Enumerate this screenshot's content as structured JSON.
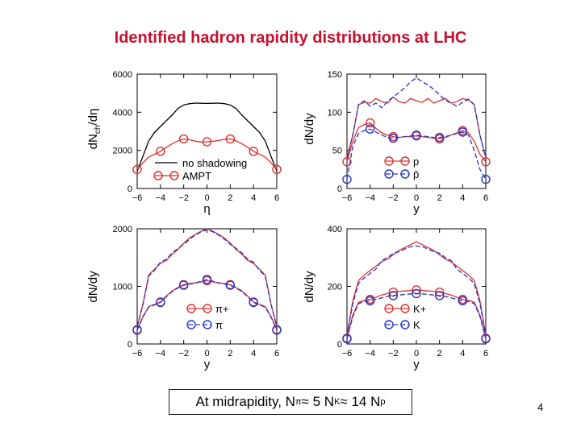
{
  "title": "Identified hadron rapidity distributions  at LHC",
  "caption": {
    "prefix": "At midrapidity, N",
    "pi_sub": "π",
    "approx1": " ≈ 5 N",
    "k_sub": "K",
    "approx2": " ≈ 14 N",
    "p_sub": "p"
  },
  "page_number": "4",
  "colors": {
    "red": "#e0312f",
    "blue": "#2436c8",
    "black": "#000000"
  },
  "chart_data": [
    {
      "type": "line",
      "panel": "top-left",
      "xlabel": "η",
      "ylabel": "dNch/dη",
      "ylabel_main": "dN",
      "ylabel_sub": "ch",
      "ylabel_tail": "/dη",
      "xlim": [
        -6,
        6
      ],
      "ylim": [
        0,
        6000
      ],
      "xticks": [
        -6,
        -4,
        -2,
        0,
        2,
        4,
        6
      ],
      "yticks": [
        0,
        2000,
        4000,
        6000
      ],
      "series": [
        {
          "name": "no shadowing",
          "color": "#000000",
          "dash": "solid",
          "markers": false,
          "x": [
            -6,
            -5.5,
            -5,
            -4.5,
            -4,
            -3.5,
            -3,
            -2.5,
            -2,
            -1.5,
            -1,
            -0.5,
            0,
            0.5,
            1,
            1.5,
            2,
            2.5,
            3,
            3.5,
            4,
            4.5,
            5,
            5.5,
            6
          ],
          "y": [
            900,
            1700,
            2500,
            2950,
            3250,
            3550,
            3850,
            4200,
            4380,
            4450,
            4480,
            4470,
            4460,
            4470,
            4480,
            4450,
            4380,
            4200,
            3850,
            3550,
            3250,
            2950,
            2500,
            1700,
            900
          ]
        },
        {
          "name": "AMPT",
          "color": "#e0312f",
          "dash": "solid",
          "markers": true,
          "x": [
            -6,
            -5.5,
            -5,
            -4.5,
            -4,
            -3.5,
            -3,
            -2.5,
            -2,
            -1.5,
            -1,
            -0.5,
            0,
            0.5,
            1,
            1.5,
            2,
            2.5,
            3,
            3.5,
            4,
            4.5,
            5,
            5.5,
            6
          ],
          "y": [
            1000,
            1350,
            1650,
            1800,
            1950,
            2150,
            2350,
            2500,
            2600,
            2560,
            2480,
            2440,
            2450,
            2480,
            2520,
            2580,
            2600,
            2500,
            2350,
            2150,
            1950,
            1800,
            1650,
            1350,
            1000
          ],
          "marker_x": [
            -6,
            -4,
            -2,
            0,
            2,
            4,
            6
          ],
          "marker_y": [
            1000,
            1950,
            2600,
            2450,
            2600,
            1950,
            1000
          ]
        }
      ],
      "legend": [
        "no shadowing",
        "AMPT"
      ]
    },
    {
      "type": "line",
      "panel": "top-right",
      "xlabel": "y",
      "ylabel": "dN/dy",
      "xlim": [
        -6,
        6
      ],
      "ylim": [
        0,
        150
      ],
      "xticks": [
        -6,
        -4,
        -2,
        0,
        2,
        4,
        6
      ],
      "yticks": [
        0,
        50,
        100,
        150
      ],
      "series": [
        {
          "name": "p (upper)",
          "color": "#e0312f",
          "dash": "solid",
          "markers": false,
          "x": [
            -6,
            -5.5,
            -5,
            -4.5,
            -4,
            -3.5,
            -3,
            -2.5,
            -2,
            -1.5,
            -1,
            -0.5,
            0,
            0.5,
            1,
            1.5,
            2,
            2.5,
            3,
            3.5,
            4,
            4.5,
            5,
            5.5,
            6
          ],
          "y": [
            40,
            70,
            110,
            113,
            112,
            118,
            114,
            112,
            120,
            114,
            112,
            118,
            115,
            113,
            118,
            112,
            115,
            118,
            112,
            114,
            118,
            116,
            110,
            70,
            40
          ]
        },
        {
          "name": "pbar (upper)",
          "color": "#2436c8",
          "dash": "dashed",
          "markers": false,
          "x": [
            -6,
            -5.5,
            -5,
            -4.5,
            -4,
            -3.5,
            -3,
            -2.5,
            -2,
            -1.5,
            -1,
            -0.5,
            0,
            0.5,
            1,
            1.5,
            2,
            2.5,
            3,
            3.5,
            4,
            4.5,
            5,
            5.5,
            6
          ],
          "y": [
            40,
            70,
            110,
            115,
            108,
            112,
            106,
            114,
            120,
            126,
            132,
            140,
            145,
            140,
            136,
            130,
            123,
            116,
            112,
            108,
            113,
            117,
            110,
            70,
            40
          ]
        },
        {
          "name": "p",
          "color": "#e0312f",
          "dash": "solid",
          "markers": true,
          "x": [
            -6,
            -5.5,
            -5,
            -4.5,
            -4,
            -3.5,
            -3,
            -2.5,
            -2,
            -1.5,
            -1,
            -0.5,
            0,
            0.5,
            1,
            1.5,
            2,
            2.5,
            3,
            3.5,
            4,
            4.5,
            5,
            5.5,
            6
          ],
          "y": [
            35,
            62,
            80,
            84,
            86,
            79,
            73,
            70,
            68,
            67,
            68,
            68,
            69,
            68,
            67,
            66,
            65,
            67,
            70,
            73,
            76,
            73,
            62,
            45,
            35
          ],
          "marker_x": [
            -6,
            -4,
            -2,
            0,
            2,
            4,
            6
          ],
          "marker_y": [
            35,
            86,
            68,
            69,
            65,
            76,
            35
          ]
        },
        {
          "name": "p̄",
          "color": "#2436c8",
          "dash": "dashed",
          "markers": true,
          "x": [
            -6,
            -5.5,
            -5,
            -4.5,
            -4,
            -3.5,
            -3,
            -2.5,
            -2,
            -1.5,
            -1,
            -0.5,
            0,
            0.5,
            1,
            1.5,
            2,
            2.5,
            3,
            3.5,
            4,
            4.5,
            5,
            5.5,
            6
          ],
          "y": [
            12,
            55,
            72,
            76,
            78,
            74,
            70,
            67,
            66,
            67,
            68,
            69,
            70,
            69,
            68,
            67,
            67,
            68,
            70,
            72,
            74,
            70,
            50,
            25,
            12
          ],
          "marker_x": [
            -6,
            -4,
            -2,
            0,
            2,
            4,
            6
          ],
          "marker_y": [
            12,
            78,
            66,
            70,
            67,
            74,
            12
          ]
        }
      ],
      "legend": [
        "p",
        "p̄"
      ]
    },
    {
      "type": "line",
      "panel": "bottom-left",
      "xlabel": "y",
      "ylabel": "dN/dy",
      "xlim": [
        -6,
        6
      ],
      "ylim": [
        0,
        2000
      ],
      "xticks": [
        -6,
        -4,
        -2,
        0,
        2,
        4,
        6
      ],
      "yticks": [
        0,
        1000,
        2000
      ],
      "series": [
        {
          "name": "π+ (upper)",
          "color": "#e0312f",
          "dash": "solid",
          "markers": false,
          "x": [
            -6,
            -5.5,
            -5,
            -4.5,
            -4,
            -3.5,
            -3,
            -2.5,
            -2,
            -1.5,
            -1,
            -0.5,
            0,
            0.5,
            1,
            1.5,
            2,
            2.5,
            3,
            3.5,
            4,
            4.5,
            5,
            5.5,
            6
          ],
          "y": [
            300,
            700,
            1200,
            1300,
            1400,
            1450,
            1560,
            1640,
            1750,
            1840,
            1900,
            1960,
            2000,
            1960,
            1900,
            1840,
            1750,
            1640,
            1560,
            1450,
            1400,
            1300,
            1200,
            700,
            300
          ]
        },
        {
          "name": "π- (upper)",
          "color": "#2436c8",
          "dash": "dashed",
          "markers": false,
          "x": [
            -6,
            -5.5,
            -5,
            -4.5,
            -4,
            -3.5,
            -3,
            -2.5,
            -2,
            -1.5,
            -1,
            -0.5,
            0,
            0.5,
            1,
            1.5,
            2,
            2.5,
            3,
            3.5,
            4,
            4.5,
            5,
            5.5,
            6
          ],
          "y": [
            300,
            690,
            1180,
            1280,
            1420,
            1470,
            1580,
            1660,
            1730,
            1820,
            1890,
            1950,
            1980,
            1950,
            1890,
            1820,
            1730,
            1660,
            1580,
            1470,
            1420,
            1280,
            1180,
            690,
            300
          ]
        },
        {
          "name": "π+",
          "color": "#e0312f",
          "dash": "solid",
          "markers": true,
          "x": [
            -6,
            -5.5,
            -5,
            -4.5,
            -4,
            -3.5,
            -3,
            -2.5,
            -2,
            -1.5,
            -1,
            -0.5,
            0,
            0.5,
            1,
            1.5,
            2,
            2.5,
            3,
            3.5,
            4,
            4.5,
            5,
            5.5,
            6
          ],
          "y": [
            250,
            480,
            650,
            690,
            730,
            830,
            920,
            980,
            1030,
            1050,
            1060,
            1080,
            1100,
            1080,
            1060,
            1050,
            1030,
            980,
            920,
            830,
            730,
            690,
            650,
            480,
            250
          ],
          "marker_x": [
            -6,
            -4,
            -2,
            0,
            2,
            4,
            6
          ],
          "marker_y": [
            250,
            730,
            1030,
            1100,
            1030,
            730,
            250
          ]
        },
        {
          "name": "π-",
          "color": "#2436c8",
          "dash": "dashed",
          "markers": true,
          "x": [
            -6,
            -5.5,
            -5,
            -4.5,
            -4,
            -3.5,
            -3,
            -2.5,
            -2,
            -1.5,
            -1,
            -0.5,
            0,
            0.5,
            1,
            1.5,
            2,
            2.5,
            3,
            3.5,
            4,
            4.5,
            5,
            5.5,
            6
          ],
          "y": [
            240,
            470,
            640,
            680,
            720,
            820,
            910,
            970,
            1020,
            1040,
            1060,
            1090,
            1120,
            1090,
            1060,
            1040,
            1020,
            970,
            910,
            820,
            720,
            680,
            640,
            470,
            240
          ],
          "marker_x": [
            -6,
            -4,
            -2,
            0,
            2,
            4,
            6
          ],
          "marker_y": [
            240,
            720,
            1020,
            1120,
            1020,
            720,
            240
          ]
        }
      ],
      "legend": [
        "π+",
        "π"
      ]
    },
    {
      "type": "line",
      "panel": "bottom-right",
      "xlabel": "y",
      "ylabel": "dN/dy",
      "xlim": [
        -6,
        6
      ],
      "ylim": [
        0,
        400
      ],
      "xticks": [
        -6,
        -4,
        -2,
        0,
        2,
        4,
        6
      ],
      "yticks": [
        0,
        200,
        400
      ],
      "series": [
        {
          "name": "K+ (upper)",
          "color": "#e0312f",
          "dash": "solid",
          "markers": false,
          "x": [
            -6,
            -5.5,
            -5,
            -4.5,
            -4,
            -3.5,
            -3,
            -2.5,
            -2,
            -1.5,
            -1,
            -0.5,
            0,
            0.5,
            1,
            1.5,
            2,
            2.5,
            3,
            3.5,
            4,
            4.5,
            5,
            5.5,
            6
          ],
          "y": [
            30,
            150,
            220,
            240,
            255,
            270,
            285,
            295,
            310,
            325,
            335,
            345,
            355,
            345,
            335,
            325,
            310,
            295,
            285,
            270,
            255,
            240,
            220,
            150,
            30
          ]
        },
        {
          "name": "K- (upper)",
          "color": "#2436c8",
          "dash": "dashed",
          "markers": false,
          "x": [
            -6,
            -5.5,
            -5,
            -4.5,
            -4,
            -3.5,
            -3,
            -2.5,
            -2,
            -1.5,
            -1,
            -0.5,
            0,
            0.5,
            1,
            1.5,
            2,
            2.5,
            3,
            3.5,
            4,
            4.5,
            5,
            5.5,
            6
          ],
          "y": [
            30,
            140,
            210,
            230,
            245,
            260,
            290,
            300,
            315,
            320,
            330,
            338,
            340,
            338,
            330,
            320,
            315,
            300,
            290,
            260,
            245,
            230,
            210,
            140,
            30
          ]
        },
        {
          "name": "K+",
          "color": "#e0312f",
          "dash": "solid",
          "markers": true,
          "x": [
            -6,
            -5.5,
            -5,
            -4.5,
            -4,
            -3.5,
            -3,
            -2.5,
            -2,
            -1.5,
            -1,
            -0.5,
            0,
            0.5,
            1,
            1.5,
            2,
            2.5,
            3,
            3.5,
            4,
            4.5,
            5,
            5.5,
            6
          ],
          "y": [
            20,
            100,
            145,
            152,
            155,
            162,
            170,
            175,
            180,
            183,
            184,
            186,
            188,
            186,
            184,
            183,
            180,
            175,
            170,
            162,
            155,
            152,
            145,
            100,
            20
          ],
          "marker_x": [
            -6,
            -4,
            -2,
            0,
            2,
            4,
            6
          ],
          "marker_y": [
            20,
            155,
            180,
            188,
            180,
            155,
            20
          ]
        },
        {
          "name": "K",
          "color": "#2436c8",
          "dash": "dashed",
          "markers": true,
          "x": [
            -6,
            -5.5,
            -5,
            -4.5,
            -4,
            -3.5,
            -3,
            -2.5,
            -2,
            -1.5,
            -1,
            -0.5,
            0,
            0.5,
            1,
            1.5,
            2,
            2.5,
            3,
            3.5,
            4,
            4.5,
            5,
            5.5,
            6
          ],
          "y": [
            18,
            95,
            140,
            147,
            150,
            155,
            160,
            165,
            168,
            170,
            172,
            174,
            175,
            174,
            172,
            170,
            168,
            165,
            160,
            155,
            150,
            147,
            140,
            95,
            18
          ],
          "marker_x": [
            -6,
            -4,
            -2,
            0,
            2,
            4,
            6
          ],
          "marker_y": [
            18,
            150,
            168,
            175,
            168,
            150,
            18
          ]
        }
      ],
      "legend": [
        "K+",
        "K"
      ]
    }
  ]
}
